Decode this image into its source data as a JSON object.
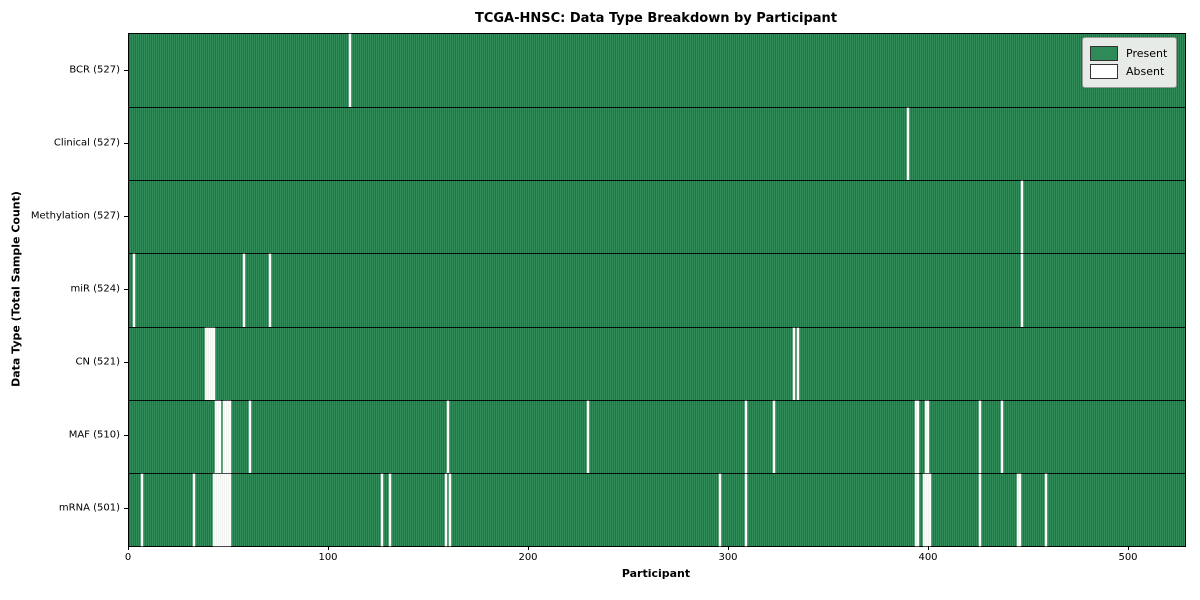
{
  "title": "TCGA-HNSC: Data Type Breakdown by Participant",
  "x_axis_label": "Participant",
  "y_axis_label": "Data Type (Total Sample Count)",
  "legend": {
    "present_label": "Present",
    "absent_label": "Absent",
    "position": "upper right"
  },
  "colors": {
    "present": "#2e8b57",
    "absent": "#ffffff",
    "bar_edge": "#0d2214",
    "legend_background": "#e7ebe7"
  },
  "chart_data": {
    "type": "heatmap",
    "title": "TCGA-HNSC: Data Type Breakdown by Participant",
    "xlabel": "Participant",
    "ylabel": "Data Type (Total Sample Count)",
    "xlim": [
      0,
      528
    ],
    "n_participants": 528,
    "x_ticks": [
      0,
      100,
      200,
      300,
      400,
      500
    ],
    "grid": false,
    "legend_position": "upper right",
    "legend_entries": [
      "Present",
      "Absent"
    ],
    "rows": [
      {
        "label": "BCR (527)",
        "data_type": "BCR",
        "present_count": 527,
        "absent_participants": [
          110
        ]
      },
      {
        "label": "Clinical (527)",
        "data_type": "Clinical",
        "present_count": 527,
        "absent_participants": [
          389
        ]
      },
      {
        "label": "Methylation (527)",
        "data_type": "Methylation",
        "present_count": 527,
        "absent_participants": [
          446
        ]
      },
      {
        "label": "miR (524)",
        "data_type": "miR",
        "present_count": 524,
        "absent_participants": [
          2,
          57,
          70,
          446
        ]
      },
      {
        "label": "CN (521)",
        "data_type": "CN",
        "present_count": 521,
        "absent_participants": [
          38,
          39,
          40,
          41,
          42,
          332,
          334
        ]
      },
      {
        "label": "MAF (510)",
        "data_type": "MAF",
        "present_count": 510,
        "absent_participants": [
          43,
          44,
          45,
          47,
          48,
          49,
          50,
          60,
          159,
          229,
          308,
          322,
          393,
          394,
          398,
          399,
          425,
          436
        ]
      },
      {
        "label": "mRNA (501)",
        "data_type": "mRNA",
        "present_count": 501,
        "absent_participants": [
          6,
          32,
          42,
          43,
          44,
          45,
          46,
          47,
          48,
          49,
          50,
          126,
          130,
          158,
          160,
          295,
          308,
          393,
          394,
          397,
          398,
          399,
          400,
          425,
          444,
          445,
          458
        ]
      }
    ]
  }
}
